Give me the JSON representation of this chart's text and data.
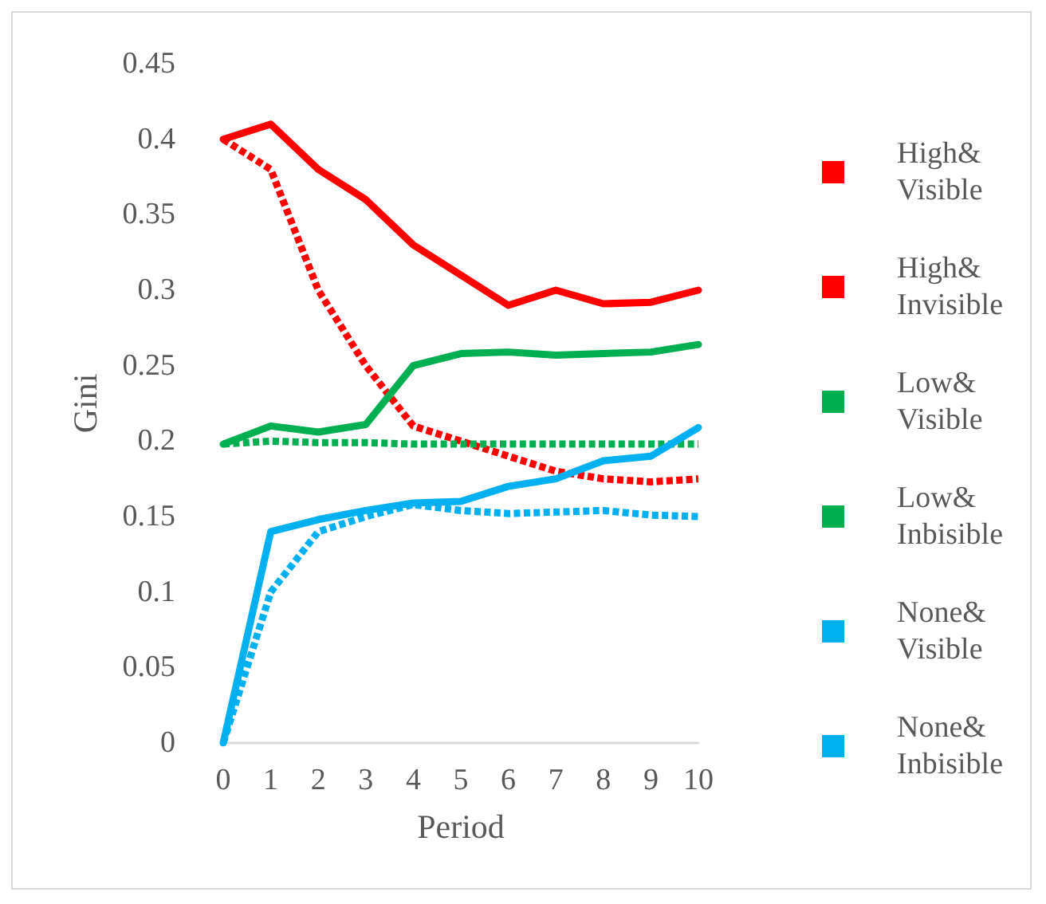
{
  "chart_data": {
    "type": "line",
    "xlabel": "Period",
    "ylabel": "Gini",
    "categories": [
      "0",
      "1",
      "2",
      "3",
      "4",
      "5",
      "6",
      "7",
      "8",
      "9",
      "10"
    ],
    "series": [
      {
        "name": "High&Visible",
        "color": "#ff0000",
        "line_style": "solid",
        "values": [
          0.4,
          0.41,
          0.38,
          0.36,
          0.33,
          0.31,
          0.29,
          0.3,
          0.291,
          0.292,
          0.3
        ]
      },
      {
        "name": "High&Invisible",
        "color": "#ff0000",
        "line_style": "dashed",
        "values": [
          0.4,
          0.38,
          0.3,
          0.25,
          0.21,
          0.2,
          0.19,
          0.18,
          0.175,
          0.173,
          0.175
        ]
      },
      {
        "name": "Low&Visible",
        "color": "#00b050",
        "line_style": "solid",
        "values": [
          0.198,
          0.21,
          0.206,
          0.211,
          0.25,
          0.258,
          0.259,
          0.257,
          0.258,
          0.259,
          0.264
        ]
      },
      {
        "name": "Low&Inbisible",
        "color": "#00b050",
        "line_style": "dashed",
        "values": [
          0.198,
          0.2,
          0.199,
          0.199,
          0.198,
          0.198,
          0.198,
          0.198,
          0.198,
          0.198,
          0.198
        ]
      },
      {
        "name": "None&Visible",
        "color": "#00b0f0",
        "line_style": "dashed",
        "values": [
          0,
          0.1,
          0.14,
          0.15,
          0.158,
          0.154,
          0.152,
          0.153,
          0.154,
          0.151,
          0.15
        ]
      },
      {
        "name": "None&Inbisible",
        "color": "#00b0f0",
        "line_style": "solid",
        "values": [
          0,
          0.14,
          0.148,
          0.154,
          0.159,
          0.16,
          0.17,
          0.175,
          0.187,
          0.19,
          0.209
        ]
      }
    ],
    "ylim": [
      0,
      0.45
    ],
    "yticks": [
      0,
      0.05,
      0.1,
      0.15,
      0.2,
      0.25,
      0.3,
      0.35,
      0.4,
      0.45
    ],
    "grid": false,
    "legend": "right",
    "marker": "none"
  }
}
